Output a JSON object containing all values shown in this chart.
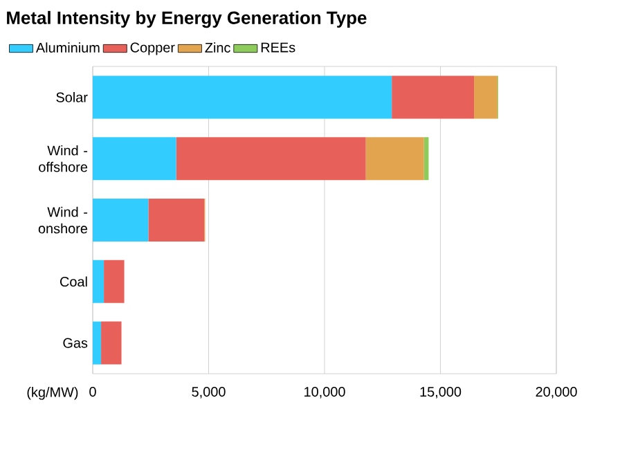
{
  "chart_data": {
    "type": "bar",
    "orientation": "horizontal",
    "stacked": true,
    "title": "Metal Intensity by Energy Generation Type",
    "xlabel": "(kg/MW)",
    "categories": [
      "Solar",
      "Wind - offshore",
      "Wind - onshore",
      "Coal",
      "Gas"
    ],
    "series": [
      {
        "name": "Aluminium",
        "color": "#33ccff",
        "values": [
          12900,
          3600,
          2400,
          480,
          360
        ]
      },
      {
        "name": "Copper",
        "color": "#e8605a",
        "values": [
          3550,
          8180,
          2410,
          880,
          880
        ]
      },
      {
        "name": "Zinc",
        "color": "#e3a44f",
        "values": [
          1010,
          2510,
          40,
          0,
          0
        ]
      },
      {
        "name": "REEs",
        "color": "#8dcc5a",
        "values": [
          30,
          200,
          0,
          0,
          0
        ]
      }
    ],
    "xlim": [
      0,
      20000
    ],
    "xticks": [
      0,
      {
        "value": 5000,
        "label": "5,000"
      },
      {
        "value": 10000,
        "label": "10,000"
      },
      {
        "value": 15000,
        "label": "15,000"
      },
      {
        "value": 20000,
        "label": "20,000"
      }
    ],
    "grid": "x",
    "legend": "top"
  }
}
